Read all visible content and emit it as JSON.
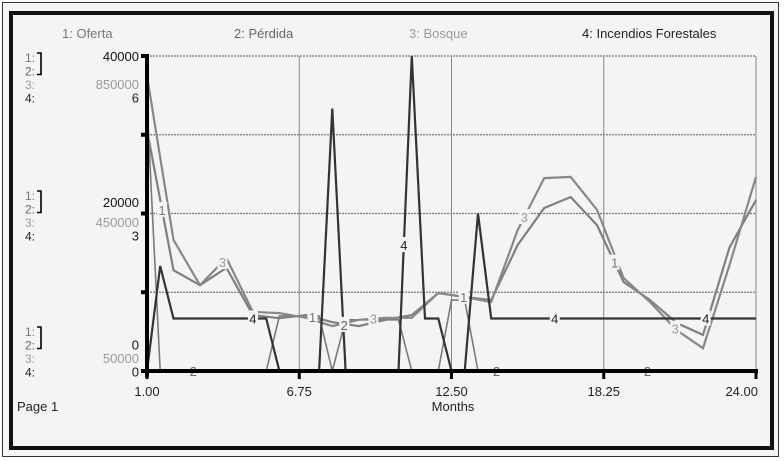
{
  "page_label": "Page 1",
  "chart_data": {
    "type": "line",
    "xlabel": "Months",
    "xlim": [
      1,
      24
    ],
    "x_ticks": [
      "1.00",
      "6.75",
      "12.50",
      "18.25",
      "24.00"
    ],
    "grid": true,
    "legend_position": "top",
    "series": [
      {
        "id": "1",
        "name": "1: Oferta",
        "color": "#808080",
        "text_color": "#777777",
        "ylim": [
          0,
          40000
        ],
        "axis_labels": [
          "40000",
          "20000",
          "0"
        ],
        "x": [
          1,
          2,
          3,
          4,
          5,
          6,
          7,
          8,
          9,
          10,
          11,
          12,
          13,
          14,
          15,
          16,
          17,
          18,
          19,
          20,
          21,
          22,
          23,
          24
        ],
        "y": [
          30600,
          12800,
          10900,
          13100,
          7100,
          6700,
          7100,
          6200,
          5700,
          6500,
          7100,
          9900,
          9400,
          9000,
          16000,
          20700,
          22100,
          18500,
          11300,
          9000,
          6100,
          4600,
          15700,
          21700
        ]
      },
      {
        "id": "2",
        "name": "2: Pérdida",
        "color": "#7a7a7a",
        "text_color": "#666666",
        "ylim": [
          0,
          40000
        ],
        "axis_labels": [
          "40000",
          "20000",
          "0"
        ],
        "x": [
          1,
          1.5,
          5.5,
          6,
          7.5,
          8,
          8.5,
          10.5,
          11,
          12,
          12.5,
          13,
          13.5,
          24
        ],
        "y": [
          34000,
          0,
          0,
          7000,
          7000,
          0,
          6500,
          6500,
          0,
          0,
          9000,
          9000,
          0,
          0
        ]
      },
      {
        "id": "3",
        "name": "3: Bosque",
        "color": "#888888",
        "text_color": "#9a9a9a",
        "ylim": [
          50000,
          850000
        ],
        "axis_labels": [
          "850000",
          "450000",
          "50000"
        ],
        "x": [
          1,
          2,
          3,
          4,
          5,
          6,
          7,
          8,
          9,
          10,
          11,
          12,
          13,
          14,
          15,
          16,
          17,
          18,
          19,
          20,
          21,
          22,
          23,
          24
        ],
        "y": [
          800000,
          383000,
          268000,
          337000,
          200000,
          197000,
          185000,
          164000,
          180000,
          185000,
          185000,
          248000,
          238000,
          225000,
          408000,
          540000,
          543000,
          459000,
          286000,
          225000,
          154000,
          108000,
          319000,
          543000
        ]
      },
      {
        "id": "4",
        "name": "4: Incendios Forestales",
        "color": "#333333",
        "text_color": "#222222",
        "ylim": [
          0,
          6
        ],
        "axis_labels": [
          "6",
          "3",
          "0"
        ],
        "x": [
          1,
          1.5,
          2,
          5.5,
          6,
          7.5,
          8,
          8.5,
          10.5,
          11,
          11.5,
          12,
          12.5,
          13,
          13.5,
          14,
          24
        ],
        "y": [
          0,
          2,
          1,
          1,
          0,
          0,
          5,
          0,
          0,
          6,
          1,
          1,
          0,
          0,
          3,
          1,
          1
        ]
      }
    ]
  }
}
